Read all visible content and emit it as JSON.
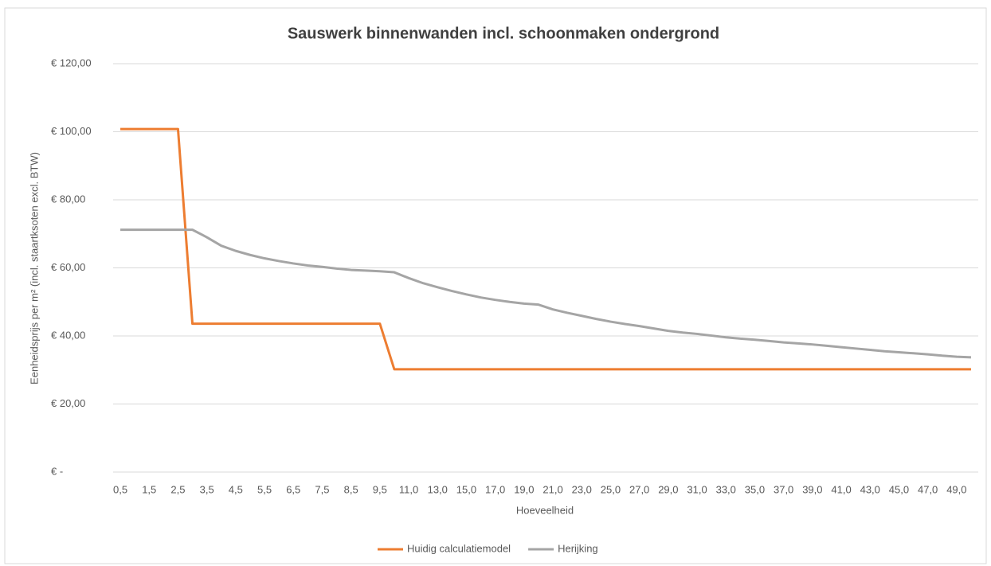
{
  "chart_data": {
    "type": "line",
    "title": "Sauswerk binnenwanden incl. schoonmaken ondergrond",
    "x_label": "Hoeveelheid",
    "y_label": "Eenheidsprijs per m² (incl. staartksoten excl. BTW)",
    "categories": [
      "0,5",
      null,
      "1,5",
      null,
      "2,5",
      null,
      "3,5",
      null,
      "4,5",
      null,
      "5,5",
      null,
      "6,5",
      null,
      "7,5",
      null,
      "8,5",
      null,
      "9,5",
      null,
      "11,0",
      null,
      "13,0",
      null,
      "15,0",
      null,
      "17,0",
      null,
      "19,0",
      null,
      "21,0",
      null,
      "23,0",
      null,
      "25,0",
      null,
      "27,0",
      null,
      "29,0",
      null,
      "31,0",
      null,
      "33,0",
      null,
      "35,0",
      null,
      "37,0",
      null,
      "39,0",
      null,
      "41,0",
      null,
      "43,0",
      null,
      "45,0",
      null,
      "47,0",
      null,
      "49,0",
      null
    ],
    "series": [
      {
        "name": "Huidig calculatiemodel",
        "color": "#ed7d31",
        "values": [
          100.8,
          100.8,
          100.8,
          100.8,
          100.8,
          43.6,
          43.6,
          43.6,
          43.6,
          43.6,
          43.6,
          43.6,
          43.6,
          43.6,
          43.6,
          43.6,
          43.6,
          43.6,
          43.6,
          30.2,
          30.2,
          30.2,
          30.2,
          30.2,
          30.2,
          30.2,
          30.2,
          30.2,
          30.2,
          30.2,
          30.2,
          30.2,
          30.2,
          30.2,
          30.2,
          30.2,
          30.2,
          30.2,
          30.2,
          30.2,
          30.2,
          30.2,
          30.2,
          30.2,
          30.2,
          30.2,
          30.2,
          30.2,
          30.2,
          30.2,
          30.2,
          30.2,
          30.2,
          30.2,
          30.2,
          30.2,
          30.2,
          30.2,
          30.2,
          30.2
        ]
      },
      {
        "name": "Herijking",
        "color": "#a5a5a5",
        "values": [
          71.2,
          71.2,
          71.2,
          71.2,
          71.2,
          71.2,
          69.0,
          66.5,
          65.0,
          63.8,
          62.8,
          62.0,
          61.3,
          60.7,
          60.3,
          59.8,
          59.4,
          59.2,
          59.0,
          58.7,
          57.0,
          55.5,
          54.3,
          53.2,
          52.2,
          51.3,
          50.6,
          50.0,
          49.5,
          49.2,
          47.8,
          46.8,
          45.9,
          45.0,
          44.2,
          43.5,
          42.9,
          42.2,
          41.5,
          41.0,
          40.6,
          40.1,
          39.6,
          39.2,
          38.9,
          38.5,
          38.1,
          37.8,
          37.5,
          37.1,
          36.7,
          36.3,
          35.9,
          35.5,
          35.2,
          34.9,
          34.6,
          34.2,
          33.9,
          33.7
        ]
      }
    ],
    "ylim": [
      0,
      120
    ],
    "yticks": [
      {
        "value": 0,
        "label": "€ -"
      },
      {
        "value": 20,
        "label": "€ 20,00"
      },
      {
        "value": 40,
        "label": "€ 40,00"
      },
      {
        "value": 60,
        "label": "€ 60,00"
      },
      {
        "value": 80,
        "label": "€ 80,00"
      },
      {
        "value": 100,
        "label": "€ 100,00"
      },
      {
        "value": 120,
        "label": "€ 120,00"
      }
    ],
    "grid": true,
    "legend": "bottom"
  }
}
